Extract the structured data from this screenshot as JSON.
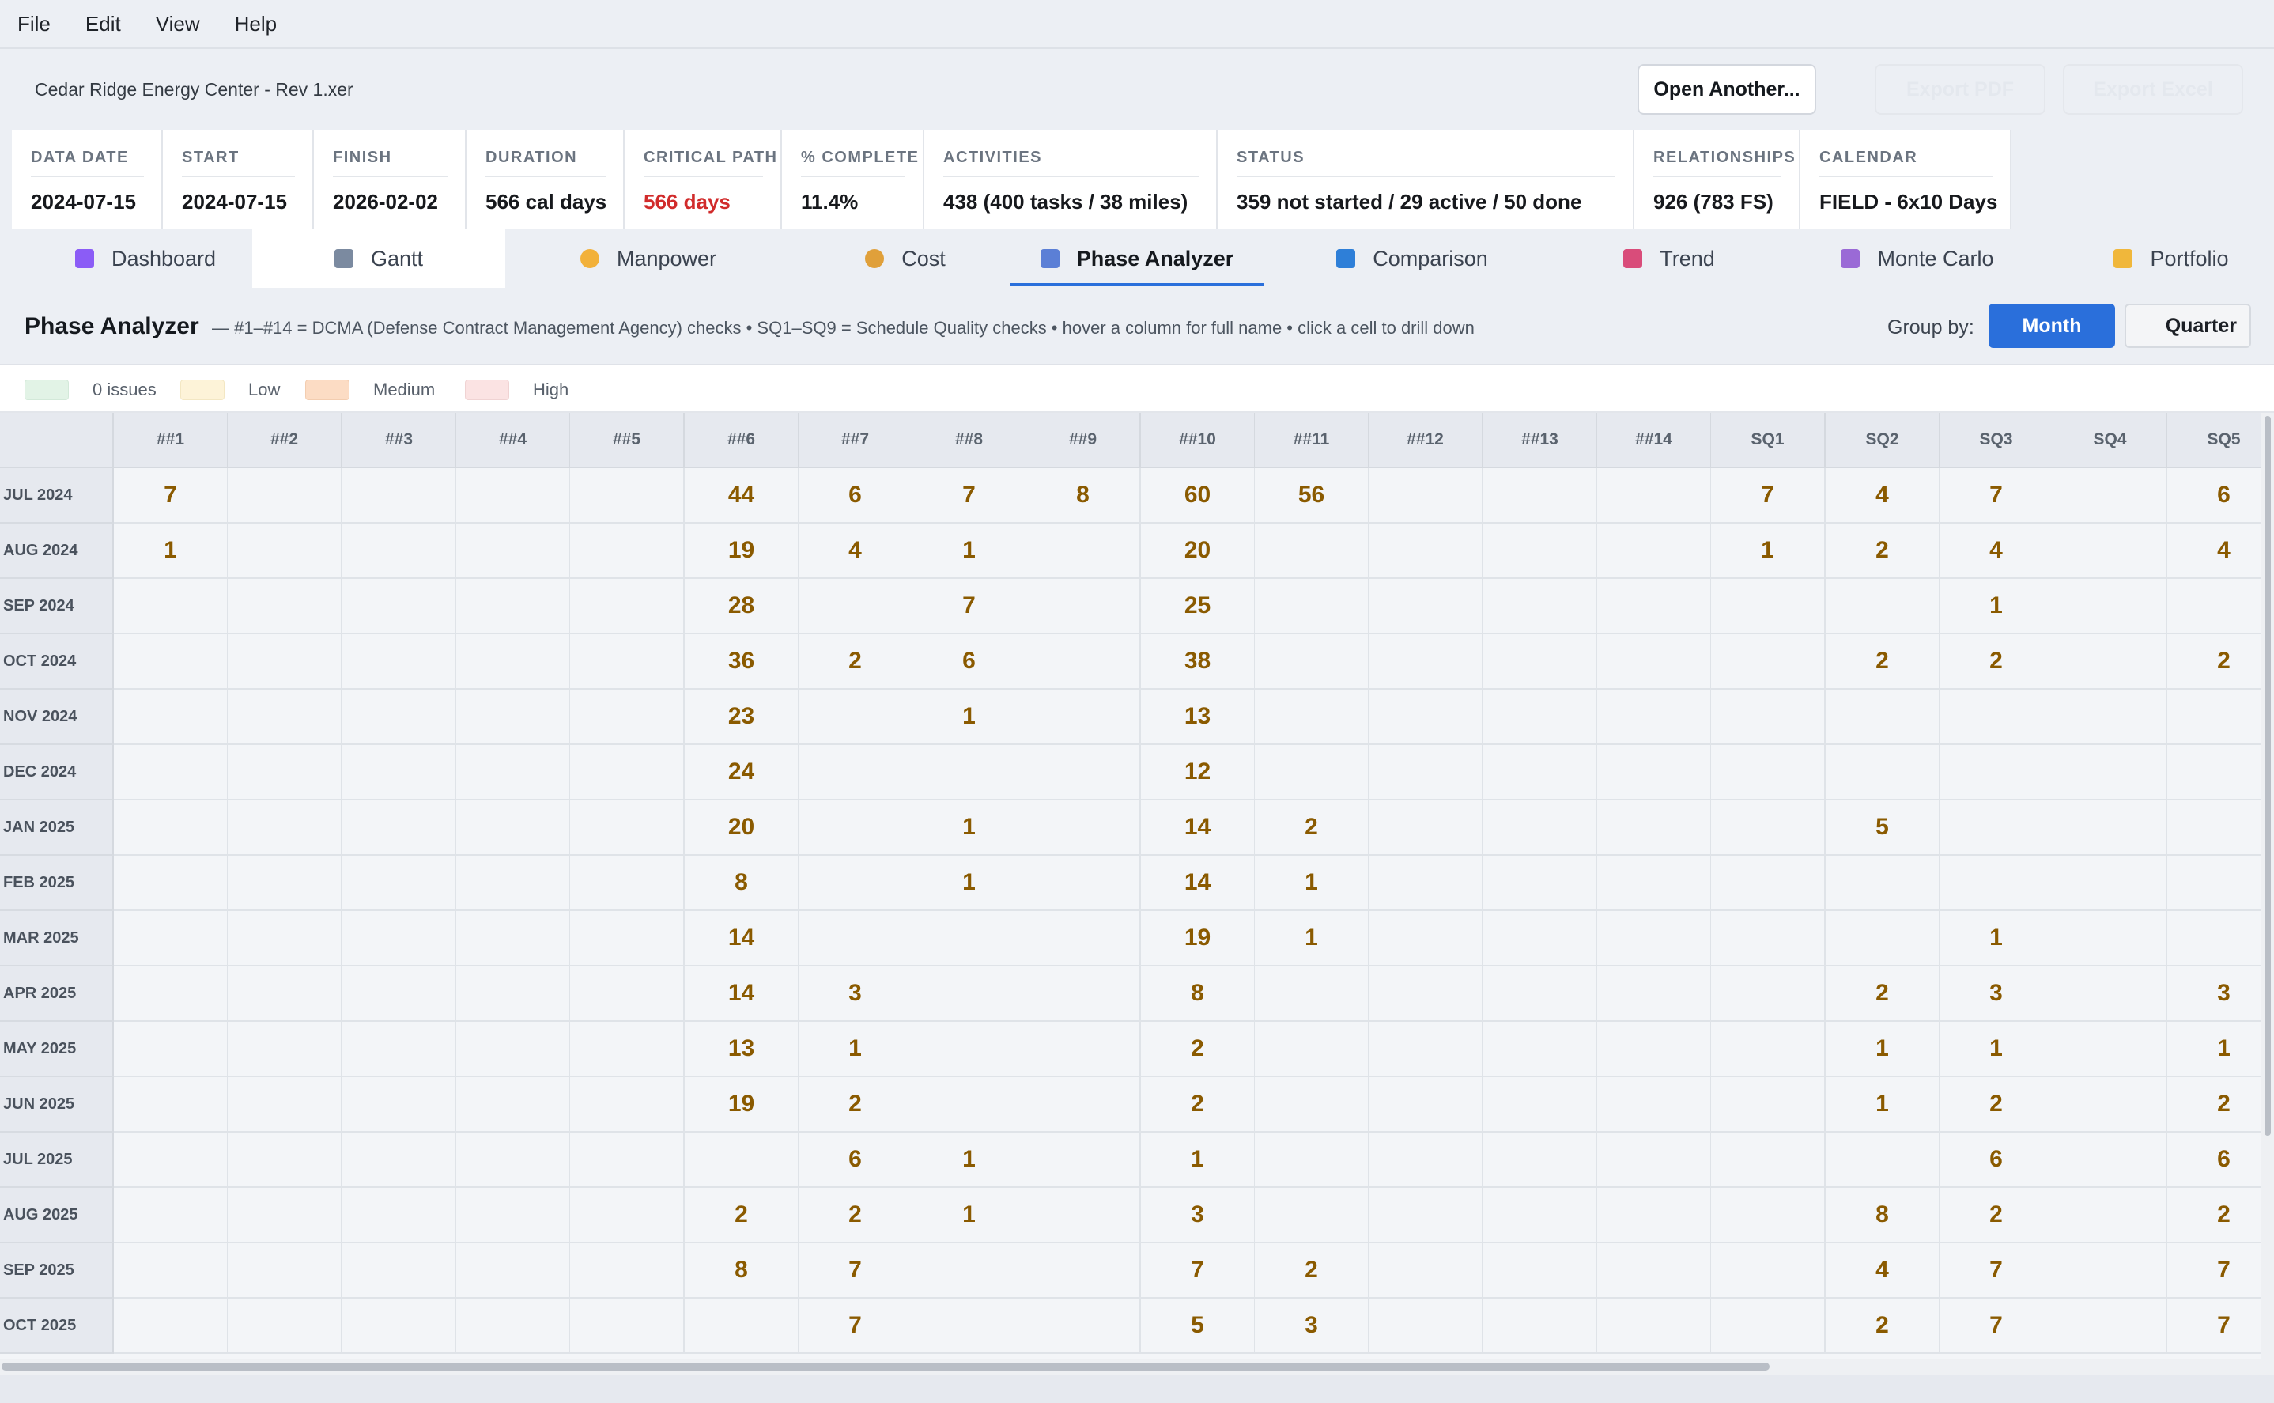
{
  "menu": [
    "File",
    "Edit",
    "View",
    "Help"
  ],
  "file": {
    "name": "Cedar Ridge Energy Center - Rev 1.xer",
    "open_label": "Open Another...",
    "pdf_label": "Export PDF",
    "excel_label": "Export Excel"
  },
  "stats": [
    {
      "label": "DATA DATE",
      "value": "2024-07-15"
    },
    {
      "label": "START",
      "value": "2024-07-15"
    },
    {
      "label": "FINISH",
      "value": "2026-02-02"
    },
    {
      "label": "DURATION",
      "value": "566 cal days"
    },
    {
      "label": "CRITICAL PATH",
      "value": "566 days",
      "color": "#d12b2b"
    },
    {
      "label": "% COMPLETE",
      "value": "11.4%"
    },
    {
      "label": "ACTIVITIES",
      "value": "438  (400 tasks / 38 miles)"
    },
    {
      "label": "STATUS",
      "value": "359 not started  /  29 active  /  50 done"
    },
    {
      "label": "RELATIONSHIPS",
      "value": "926  (783 FS)"
    },
    {
      "label": "CALENDAR",
      "value": "FIELD - 6x10 Days"
    }
  ],
  "tabs": [
    {
      "label": "Dashboard",
      "icon": "bar-chart-icon",
      "icon_color": "#8b5cf6"
    },
    {
      "label": "Gantt",
      "icon": "line-chart-icon",
      "icon_color": "#7b8aa0"
    },
    {
      "label": "Manpower",
      "icon": "worker-icon",
      "icon_color": "#f2b13a"
    },
    {
      "label": "Cost",
      "icon": "money-bag-icon",
      "icon_color": "#e0a03a"
    },
    {
      "label": "Phase Analyzer",
      "icon": "calendar-icon",
      "icon_color": "#5b7fd6"
    },
    {
      "label": "Comparison",
      "icon": "shuffle-icon",
      "icon_color": "#2e7fd8"
    },
    {
      "label": "Trend",
      "icon": "trend-down-icon",
      "icon_color": "#d94c7a"
    },
    {
      "label": "Monte Carlo",
      "icon": "dice-icon",
      "icon_color": "#9a6ad6"
    },
    {
      "label": "Portfolio",
      "icon": "folder-icon",
      "icon_color": "#f0b73b"
    }
  ],
  "active_tab": "Phase Analyzer",
  "phase": {
    "title": "Phase Analyzer",
    "description": "— #1–#14 = DCMA (Defense Contract Management Agency) checks  •  SQ1–SQ9 = Schedule Quality checks  •  hover a column for full name  •  click a cell to drill down",
    "group_by_label": "Group by:",
    "month_label": "Month",
    "quarter_label": "Quarter"
  },
  "legend": [
    {
      "label": "0 issues",
      "color": "#e2f3e6"
    },
    {
      "label": "Low",
      "color": "#fdf3d8"
    },
    {
      "label": "Medium",
      "color": "#fcdcc4"
    },
    {
      "label": "High",
      "color": "#fbe3e3"
    }
  ],
  "grid": {
    "columns": [
      "##1",
      "##2",
      "##3",
      "##4",
      "##5",
      "##6",
      "##7",
      "##8",
      "##9",
      "##10",
      "##11",
      "##12",
      "##13",
      "##14",
      "SQ1",
      "SQ2",
      "SQ3",
      "SQ4",
      "SQ5"
    ],
    "rows": [
      {
        "label": "JUL 2024",
        "cells": [
          "7",
          "",
          "",
          "",
          "",
          "44",
          "6",
          "7",
          "8",
          "60",
          "56",
          "",
          "",
          "",
          "7",
          "4",
          "7",
          "",
          "6"
        ]
      },
      {
        "label": "AUG 2024",
        "cells": [
          "1",
          "",
          "",
          "",
          "",
          "19",
          "4",
          "1",
          "",
          "20",
          "",
          "",
          "",
          "",
          "1",
          "2",
          "4",
          "",
          "4"
        ]
      },
      {
        "label": "SEP 2024",
        "cells": [
          "",
          "",
          "",
          "",
          "",
          "28",
          "",
          "7",
          "",
          "25",
          "",
          "",
          "",
          "",
          "",
          "",
          "1",
          "",
          ""
        ]
      },
      {
        "label": "OCT 2024",
        "cells": [
          "",
          "",
          "",
          "",
          "",
          "36",
          "2",
          "6",
          "",
          "38",
          "",
          "",
          "",
          "",
          "",
          "2",
          "2",
          "",
          "2"
        ]
      },
      {
        "label": "NOV 2024",
        "cells": [
          "",
          "",
          "",
          "",
          "",
          "23",
          "",
          "1",
          "",
          "13",
          "",
          "",
          "",
          "",
          "",
          "",
          "",
          "",
          ""
        ]
      },
      {
        "label": "DEC 2024",
        "cells": [
          "",
          "",
          "",
          "",
          "",
          "24",
          "",
          "",
          "",
          "12",
          "",
          "",
          "",
          "",
          "",
          "",
          "",
          "",
          ""
        ]
      },
      {
        "label": "JAN 2025",
        "cells": [
          "",
          "",
          "",
          "",
          "",
          "20",
          "",
          "1",
          "",
          "14",
          "2",
          "",
          "",
          "",
          "",
          "5",
          "",
          "",
          ""
        ]
      },
      {
        "label": "FEB 2025",
        "cells": [
          "",
          "",
          "",
          "",
          "",
          "8",
          "",
          "1",
          "",
          "14",
          "1",
          "",
          "",
          "",
          "",
          "",
          "",
          "",
          ""
        ]
      },
      {
        "label": "MAR 2025",
        "cells": [
          "",
          "",
          "",
          "",
          "",
          "14",
          "",
          "",
          "",
          "19",
          "1",
          "",
          "",
          "",
          "",
          "",
          "1",
          "",
          ""
        ]
      },
      {
        "label": "APR 2025",
        "cells": [
          "",
          "",
          "",
          "",
          "",
          "14",
          "3",
          "",
          "",
          "8",
          "",
          "",
          "",
          "",
          "",
          "2",
          "3",
          "",
          "3"
        ]
      },
      {
        "label": "MAY 2025",
        "cells": [
          "",
          "",
          "",
          "",
          "",
          "13",
          "1",
          "",
          "",
          "2",
          "",
          "",
          "",
          "",
          "",
          "1",
          "1",
          "",
          "1"
        ]
      },
      {
        "label": "JUN 2025",
        "cells": [
          "",
          "",
          "",
          "",
          "",
          "19",
          "2",
          "",
          "",
          "2",
          "",
          "",
          "",
          "",
          "",
          "1",
          "2",
          "",
          "2"
        ]
      },
      {
        "label": "JUL 2025",
        "cells": [
          "",
          "",
          "",
          "",
          "",
          "",
          "6",
          "1",
          "",
          "1",
          "",
          "",
          "",
          "",
          "",
          "",
          "6",
          "",
          "6"
        ]
      },
      {
        "label": "AUG 2025",
        "cells": [
          "",
          "",
          "",
          "",
          "",
          "2",
          "2",
          "1",
          "",
          "3",
          "",
          "",
          "",
          "",
          "",
          "8",
          "2",
          "",
          "2"
        ]
      },
      {
        "label": "SEP 2025",
        "cells": [
          "",
          "",
          "",
          "",
          "",
          "8",
          "7",
          "",
          "",
          "7",
          "2",
          "",
          "",
          "",
          "",
          "4",
          "7",
          "",
          "7"
        ]
      },
      {
        "label": "OCT 2025",
        "cells": [
          "",
          "",
          "",
          "",
          "",
          "",
          "7",
          "",
          "",
          "5",
          "3",
          "",
          "",
          "",
          "",
          "2",
          "7",
          "",
          "7"
        ]
      }
    ]
  }
}
